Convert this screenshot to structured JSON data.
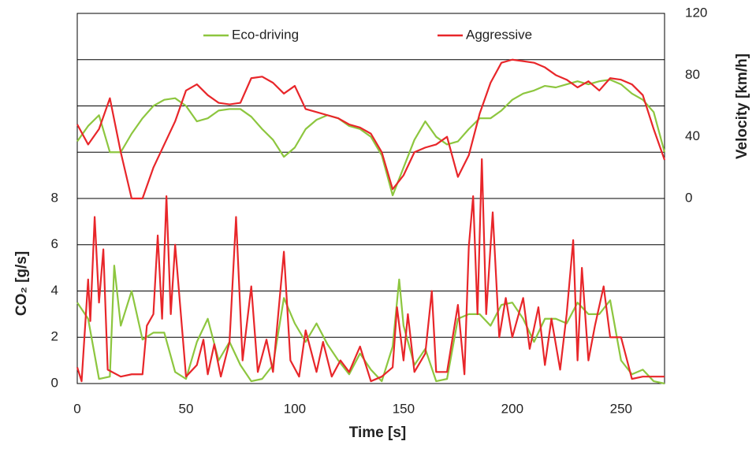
{
  "chart_data": {
    "type": "line",
    "xlabel": "Time [s]",
    "ylabel": "CO₂ [g/s]",
    "y2label": "Velocity [km/h]",
    "xlim": [
      0,
      270
    ],
    "xticks": [
      0,
      50,
      100,
      150,
      200,
      250
    ],
    "ylim": [
      0,
      16
    ],
    "yticks": [
      0,
      2,
      4,
      6,
      8
    ],
    "ygrid": [
      0,
      2,
      4,
      6,
      8,
      10,
      12,
      14,
      16
    ],
    "y2lim": [
      -120,
      120
    ],
    "y2ticks": [
      0,
      40,
      80,
      120
    ],
    "legend": "top",
    "series": [
      {
        "name": "Eco-driving",
        "color": "#8dc63f",
        "x": [
          0,
          5,
          10,
          15,
          17,
          20,
          25,
          30,
          35,
          40,
          45,
          50,
          55,
          60,
          65,
          70,
          75,
          80,
          85,
          90,
          95,
          100,
          105,
          110,
          115,
          120,
          125,
          130,
          135,
          140,
          145,
          148,
          150,
          155,
          160,
          165,
          170,
          175,
          180,
          185,
          190,
          195,
          200,
          205,
          210,
          215,
          220,
          225,
          230,
          235,
          240,
          245,
          250,
          255,
          260,
          265,
          270
        ],
        "values": [
          3.5,
          2.8,
          0.2,
          0.3,
          5.1,
          2.5,
          4.0,
          1.9,
          2.2,
          2.2,
          0.5,
          0.2,
          1.8,
          2.8,
          1.0,
          1.8,
          0.8,
          0.1,
          0.2,
          0.8,
          3.7,
          2.6,
          1.8,
          2.6,
          1.7,
          1.0,
          0.4,
          1.3,
          0.6,
          0.1,
          1.6,
          4.5,
          2.5,
          0.8,
          1.5,
          0.1,
          0.2,
          2.8,
          3.0,
          3.0,
          2.5,
          3.4,
          3.5,
          2.8,
          1.8,
          2.8,
          2.8,
          2.6,
          3.5,
          3.0,
          3.0,
          3.6,
          1.0,
          0.4,
          0.6,
          0.1,
          0
        ]
      },
      {
        "name": "Aggressive",
        "color": "#e8262a",
        "x": [
          0,
          2,
          5,
          6,
          8,
          10,
          12,
          14,
          20,
          25,
          30,
          32,
          35,
          37,
          39,
          41,
          43,
          45,
          50,
          55,
          58,
          60,
          63,
          66,
          70,
          73,
          76,
          80,
          83,
          87,
          90,
          95,
          98,
          102,
          105,
          110,
          113,
          117,
          121,
          125,
          130,
          135,
          140,
          145,
          147,
          150,
          152,
          155,
          160,
          163,
          165,
          170,
          175,
          178,
          180,
          182,
          184,
          186,
          188,
          191,
          194,
          197,
          200,
          205,
          208,
          212,
          215,
          218,
          222,
          225,
          228,
          230,
          232,
          235,
          238,
          242,
          245,
          250,
          255,
          260,
          265,
          270
        ],
        "values": [
          0.7,
          0.1,
          4.5,
          2.7,
          7.2,
          3.5,
          5.8,
          0.6,
          0.3,
          0.4,
          0.4,
          2.5,
          3.0,
          6.4,
          2.8,
          8.1,
          3.0,
          6.0,
          0.3,
          0.8,
          1.9,
          0.4,
          1.7,
          0.3,
          1.8,
          7.2,
          1.0,
          4.2,
          0.5,
          1.9,
          0.5,
          5.7,
          1.0,
          0.3,
          2.3,
          0.5,
          1.8,
          0.3,
          1.0,
          0.5,
          1.6,
          0.1,
          0.3,
          0.7,
          3.3,
          1.0,
          3.0,
          0.5,
          1.3,
          4.0,
          0.5,
          0.5,
          3.4,
          0.4,
          5.9,
          8.1,
          3.0,
          9.7,
          3.0,
          7.4,
          2.0,
          3.7,
          2.0,
          3.7,
          1.5,
          3.3,
          0.8,
          2.8,
          0.6,
          3.0,
          6.2,
          1.0,
          5.0,
          1.0,
          2.5,
          4.2,
          2.0,
          2.0,
          0.2,
          0.3,
          0.3,
          0.3
        ]
      }
    ],
    "velocity_x": [
      0,
      5,
      10,
      15,
      20,
      25,
      30,
      35,
      40,
      45,
      50,
      55,
      60,
      65,
      70,
      75,
      80,
      85,
      90,
      95,
      100,
      105,
      110,
      115,
      120,
      125,
      130,
      135,
      140,
      145,
      150,
      155,
      160,
      165,
      170,
      175,
      180,
      185,
      190,
      195,
      200,
      205,
      210,
      215,
      220,
      225,
      230,
      235,
      240,
      245,
      250,
      255,
      260,
      265,
      270
    ],
    "velocity_series": [
      {
        "values": [
          37,
          47,
          54,
          30,
          30,
          42,
          52,
          60,
          64,
          65,
          60,
          50,
          52,
          57,
          58,
          58,
          53,
          45,
          38,
          27,
          33,
          45,
          51,
          54,
          52,
          47,
          45,
          40,
          28,
          2,
          20,
          38,
          50,
          40,
          35,
          37,
          45,
          52,
          52,
          57,
          64,
          68,
          70,
          73,
          72,
          74,
          76,
          74,
          76,
          77,
          74,
          68,
          64,
          56,
          30
        ]
      },
      {
        "values": [
          48,
          35,
          45,
          65,
          30,
          0,
          0,
          20,
          35,
          50,
          70,
          74,
          67,
          62,
          61,
          62,
          78,
          79,
          75,
          68,
          73,
          58,
          56,
          54,
          52,
          48,
          46,
          42,
          30,
          6,
          15,
          30,
          33,
          35,
          40,
          14,
          28,
          55,
          75,
          88,
          90,
          89,
          88,
          85,
          80,
          77,
          72,
          76,
          70,
          78,
          77,
          74,
          67,
          45,
          25
        ]
      }
    ]
  }
}
